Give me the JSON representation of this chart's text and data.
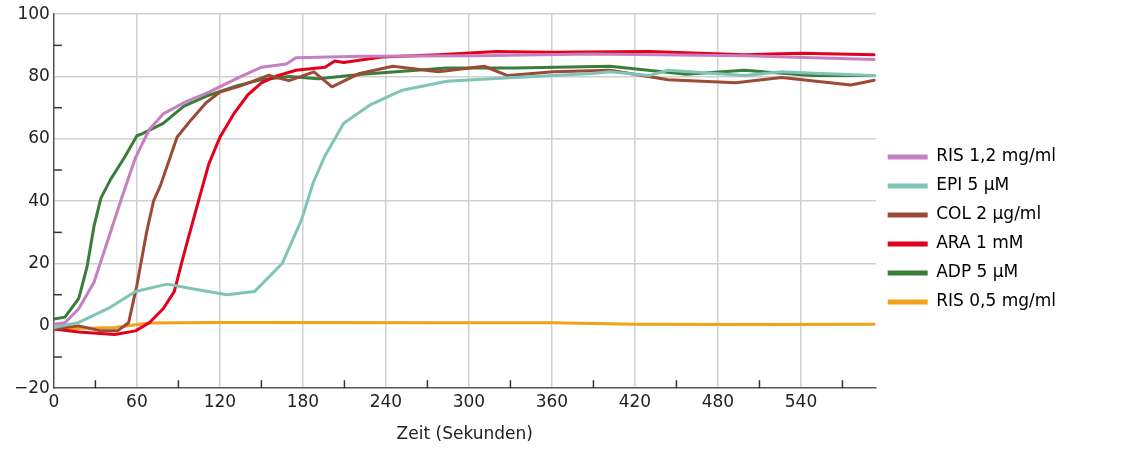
{
  "chart_data": {
    "type": "line",
    "xlabel": "Zeit (Sekunden)",
    "xlim": [
      0,
      594
    ],
    "ylim": [
      -20,
      100
    ],
    "xticks": [
      0,
      {
        "value": 30,
        "label": null
      },
      60,
      {
        "value": 90,
        "label": null
      },
      120,
      {
        "value": 150,
        "label": null
      },
      180,
      {
        "value": 210,
        "label": null
      },
      240,
      {
        "value": 270,
        "label": null
      },
      300,
      {
        "value": 330,
        "label": null
      },
      360,
      {
        "value": 390,
        "label": null
      },
      420,
      {
        "value": 450,
        "label": null
      },
      480,
      {
        "value": 510,
        "label": null
      },
      540,
      {
        "value": 570,
        "label": null
      }
    ],
    "yticks": [
      {
        "value": -20,
        "label": "−20"
      },
      {
        "value": -10,
        "label": null
      },
      0,
      {
        "value": 10,
        "label": null
      },
      20,
      {
        "value": 30,
        "label": null
      },
      40,
      {
        "value": 50,
        "label": null
      },
      60,
      {
        "value": 70,
        "label": null
      },
      80,
      {
        "value": 90,
        "label": null
      },
      100
    ],
    "grid": true,
    "legend": "right",
    "marker": "none",
    "line_style": "solid",
    "series": [
      {
        "name": "RIS 1,2 mg/ml",
        "color": "#c67fc0",
        "x": [
          0,
          8,
          18,
          29,
          39,
          49,
          59,
          69,
          79,
          94,
          112,
          132,
          150,
          168,
          175,
          223,
          306,
          389,
          499,
          593
        ],
        "values": [
          0.5,
          1,
          5.5,
          14,
          27.5,
          41,
          54,
          63,
          68,
          71.6,
          75,
          79.3,
          83,
          84,
          86,
          86.5,
          86.7,
          87.2,
          86.7,
          85.5
        ]
      },
      {
        "name": "EPI 5 µM",
        "color": "#7fc4b6",
        "x": [
          0,
          18,
          39,
          59,
          82,
          99,
          125,
          145,
          165,
          179,
          187.5,
          196,
          209.5,
          229,
          251,
          284,
          333.5,
          389,
          402,
          430,
          444,
          499,
          526,
          554,
          593
        ],
        "values": [
          -0.5,
          1.1,
          5.5,
          11,
          13.4,
          12,
          10,
          11,
          20,
          34,
          46,
          54.6,
          65,
          71,
          75.5,
          78.5,
          79.7,
          81,
          81.5,
          80.3,
          82,
          80.3,
          81.5,
          81,
          80.3
        ]
      },
      {
        "name": "COL 2 µg/ml",
        "color": "#9b4a35",
        "x": [
          0,
          18,
          34,
          46,
          54,
          60,
          67,
          72,
          77,
          84,
          89,
          99,
          110,
          120,
          135,
          155,
          170,
          188,
          201,
          221,
          245,
          278,
          311,
          328,
          361,
          402,
          444,
          493,
          526,
          576,
          593
        ],
        "values": [
          -1,
          0,
          -1.6,
          -1.6,
          1,
          13,
          30,
          40,
          45,
          54,
          60.5,
          66,
          71.6,
          75,
          77,
          80.4,
          78.7,
          81.5,
          76.7,
          81,
          83.3,
          81.5,
          83.3,
          80.3,
          81.5,
          82,
          79,
          78,
          79.7,
          77.3,
          78.8
        ]
      },
      {
        "name": "ARA 1 mM",
        "color": "#e3001b",
        "x": [
          0,
          18,
          44,
          59,
          69,
          79,
          87,
          94,
          102,
          112,
          120,
          130,
          140,
          150,
          160,
          175,
          196,
          203,
          209.5,
          237,
          278,
          320,
          361,
          430,
          499,
          540,
          593
        ],
        "values": [
          -1,
          -2,
          -2.8,
          -1.6,
          1,
          5.5,
          11,
          23,
          36,
          52,
          60.5,
          68,
          74,
          78,
          80,
          82,
          83,
          85,
          84.5,
          86.3,
          87,
          88,
          87.8,
          88,
          87,
          87.5,
          87
        ]
      },
      {
        "name": "ADP 5 µM",
        "color": "#3a7d3a",
        "x": [
          0,
          8,
          18,
          24,
          29,
          34,
          41,
          51,
          60,
          64,
          79,
          94,
          112,
          132,
          150,
          170,
          191,
          223,
          284,
          333,
          402,
          457,
          499,
          548,
          593
        ],
        "values": [
          2.2,
          2.8,
          8.8,
          19,
          32,
          41,
          47,
          54,
          61,
          61.7,
          65,
          70.5,
          74,
          77,
          79,
          80,
          79.3,
          80.7,
          82.7,
          82.7,
          83.3,
          80.7,
          82,
          80.3,
          80.3
        ]
      },
      {
        "name": "RIS 0,5 mg/ml",
        "color": "#f0a21a",
        "x": [
          0,
          44,
          69,
          120,
          273,
          360,
          420,
          500,
          593
        ],
        "values": [
          -1,
          -0.5,
          0.9,
          1.1,
          1,
          1,
          0.5,
          0.4,
          0.5
        ]
      }
    ]
  }
}
